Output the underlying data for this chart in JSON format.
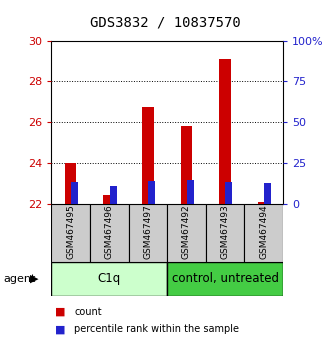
{
  "title": "GDS3832 / 10837570",
  "samples": [
    "GSM467495",
    "GSM467496",
    "GSM467497",
    "GSM467492",
    "GSM467493",
    "GSM467494"
  ],
  "red_values": [
    23.98,
    22.42,
    26.72,
    25.82,
    29.12,
    22.1
  ],
  "blue_pct_values": [
    13.0,
    11.0,
    14.0,
    14.5,
    13.5,
    12.5
  ],
  "y_min": 22,
  "y_max": 30,
  "y_ticks": [
    22,
    24,
    26,
    28,
    30
  ],
  "y2_ticks": [
    0,
    25,
    50,
    75,
    100
  ],
  "red_color": "#cc0000",
  "blue_color": "#2222cc",
  "group_info": [
    {
      "name": "C1q",
      "start": 0,
      "end": 2,
      "color": "#ccffcc"
    },
    {
      "name": "control, untreated",
      "start": 3,
      "end": 5,
      "color": "#44cc44"
    }
  ],
  "sample_box_color": "#cccccc",
  "title_fontsize": 10,
  "tick_fontsize": 8,
  "sample_fontsize": 6.5,
  "group_fontsize": 8.5,
  "legend_fontsize": 7,
  "bar_base": 22,
  "legend_items": [
    {
      "label": "count",
      "color": "#cc0000"
    },
    {
      "label": "percentile rank within the sample",
      "color": "#2222cc"
    }
  ]
}
